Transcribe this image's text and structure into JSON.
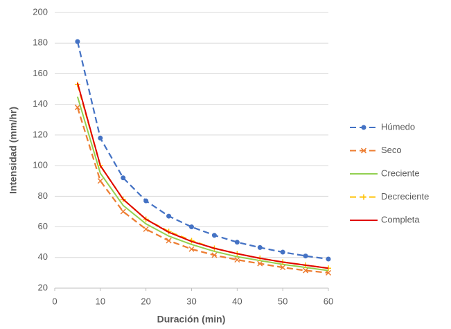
{
  "chart_data": {
    "type": "line",
    "xlabel": "Duración (min)",
    "ylabel": "Intensidad (mm/hr)",
    "x": [
      5,
      10,
      15,
      20,
      25,
      30,
      35,
      40,
      45,
      50,
      55,
      60
    ],
    "xlim": [
      0,
      60
    ],
    "xticks": [
      0,
      10,
      20,
      30,
      40,
      50,
      60
    ],
    "ylim": [
      20,
      200
    ],
    "yticks": [
      20,
      40,
      60,
      80,
      100,
      120,
      140,
      160,
      180,
      200
    ],
    "grid": true,
    "legend": "right",
    "series": [
      {
        "name": "Húmedo",
        "color": "#4472c4",
        "dash": true,
        "marker": "circle",
        "values": [
          181,
          118,
          92,
          77,
          67,
          60,
          54.5,
          50,
          46.5,
          43.5,
          41,
          39
        ]
      },
      {
        "name": "Seco",
        "color": "#ed7d31",
        "dash": true,
        "marker": "x",
        "values": [
          138,
          90,
          70,
          58.5,
          51,
          45.5,
          41.5,
          38.5,
          36,
          33.5,
          31.5,
          30
        ]
      },
      {
        "name": "Creciente",
        "color": "#92d050",
        "dash": false,
        "values": [
          145,
          95,
          74,
          62,
          54,
          48.5,
          44,
          40.5,
          38,
          35.5,
          33.5,
          31.5
        ]
      },
      {
        "name": "Decreciente",
        "color": "#ffc000",
        "dash": true,
        "marker": "plus",
        "values": [
          153,
          100,
          78,
          65,
          57,
          51,
          46,
          42.5,
          39.5,
          37,
          35,
          33
        ]
      },
      {
        "name": "Completa",
        "color": "#e00000",
        "dash": false,
        "values": [
          154,
          100,
          78,
          65,
          56.5,
          50.5,
          46,
          42.5,
          39.5,
          37,
          35,
          33
        ]
      }
    ]
  }
}
